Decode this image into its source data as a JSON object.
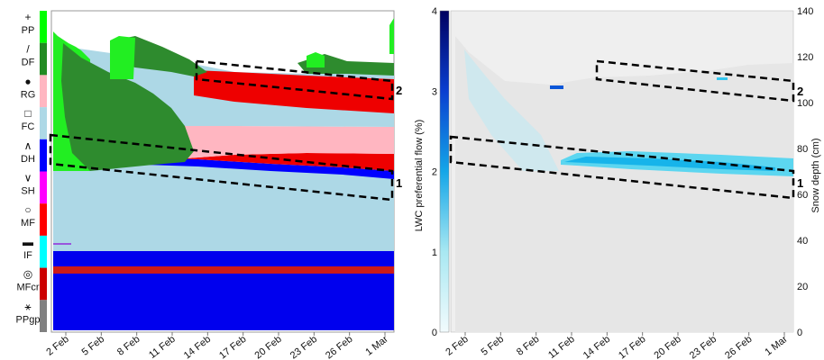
{
  "chart_data": [
    {
      "type": "heatmap",
      "x_ticks": [
        "2 Feb",
        "5 Feb",
        "8 Feb",
        "11 Feb",
        "14 Feb",
        "17 Feb",
        "20 Feb",
        "23 Feb",
        "26 Feb",
        "1 Mar"
      ],
      "legend": [
        {
          "code": "PP",
          "symbol": "+",
          "color": "#00ff00"
        },
        {
          "code": "DF",
          "symbol": "/",
          "color": "#228b22"
        },
        {
          "code": "RG",
          "symbol": "●",
          "color": "#ffb6c1"
        },
        {
          "code": "FC",
          "symbol": "□",
          "color": "#add8e6"
        },
        {
          "code": "DH",
          "symbol": "∧",
          "color": "#0000ff"
        },
        {
          "code": "SH",
          "symbol": "∨",
          "color": "#ff00ff"
        },
        {
          "code": "MF",
          "symbol": "○",
          "color": "#ff0000"
        },
        {
          "code": "IF",
          "symbol": "▬",
          "color": "#00ffff"
        },
        {
          "code": "MFcr",
          "symbol": "◎",
          "color": "#cc0000"
        },
        {
          "code": "PPgp",
          "symbol": "⚹",
          "color": "#808080"
        }
      ],
      "annotations": [
        {
          "label": "2"
        },
        {
          "label": "1"
        }
      ]
    },
    {
      "type": "heatmap",
      "x_ticks": [
        "2 Feb",
        "5 Feb",
        "8 Feb",
        "11 Feb",
        "14 Feb",
        "17 Feb",
        "20 Feb",
        "23 Feb",
        "26 Feb",
        "1 Mar"
      ],
      "colorbar": {
        "label": "LWC preferential flow (%)",
        "range": [
          0,
          4
        ],
        "ticks": [
          "0",
          "1",
          "2",
          "3",
          "4"
        ]
      },
      "y_right": {
        "label": "Snow depth (cm)",
        "range": [
          0,
          140
        ],
        "ticks": [
          "0",
          "20",
          "40",
          "60",
          "80",
          "100",
          "120",
          "140"
        ]
      },
      "annotations": [
        {
          "label": "2"
        },
        {
          "label": "1"
        }
      ]
    }
  ]
}
